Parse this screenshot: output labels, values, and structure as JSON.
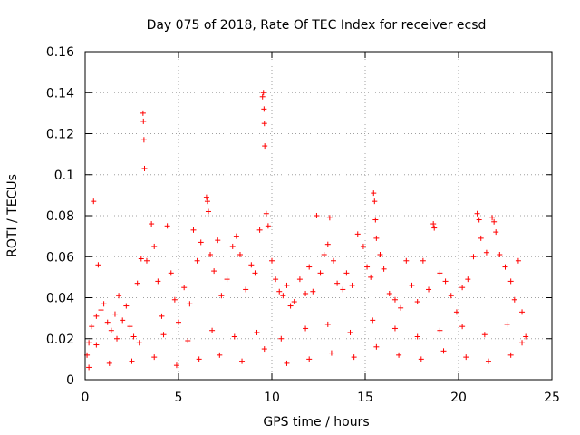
{
  "chart_data": {
    "type": "scatter",
    "title": "Day 075 of 2018, Rate Of TEC Index for receiver ecsd",
    "xlabel": "GPS time / hours",
    "ylabel": "ROTI / TECUs",
    "xlim": [
      0,
      25
    ],
    "ylim": [
      0,
      0.16
    ],
    "x_ticks": [
      0,
      5,
      10,
      15,
      20,
      25
    ],
    "y_ticks": [
      0,
      0.02,
      0.04,
      0.06,
      0.08,
      0.1,
      0.12,
      0.14,
      0.16
    ],
    "x_tick_labels": [
      "0",
      "5",
      "10",
      "15",
      "20",
      "25"
    ],
    "y_tick_labels": [
      "0",
      "0.02",
      "0.04",
      "0.06",
      "0.08",
      "0.1",
      "0.12",
      "0.14",
      "0.16"
    ],
    "grid": true,
    "marker": "+",
    "color": "#ff0000",
    "series": [
      {
        "name": "ROTI",
        "points": [
          [
            0.1,
            0.012
          ],
          [
            0.2,
            0.018
          ],
          [
            0.35,
            0.026
          ],
          [
            0.45,
            0.087
          ],
          [
            0.6,
            0.031
          ],
          [
            0.7,
            0.056
          ],
          [
            0.85,
            0.034
          ],
          [
            1.0,
            0.037
          ],
          [
            1.2,
            0.028
          ],
          [
            1.4,
            0.024
          ],
          [
            1.6,
            0.032
          ],
          [
            1.8,
            0.041
          ],
          [
            2.0,
            0.029
          ],
          [
            2.2,
            0.036
          ],
          [
            2.4,
            0.026
          ],
          [
            2.6,
            0.021
          ],
          [
            2.8,
            0.047
          ],
          [
            3.0,
            0.059
          ],
          [
            3.1,
            0.13
          ],
          [
            3.12,
            0.126
          ],
          [
            3.15,
            0.117
          ],
          [
            3.18,
            0.103
          ],
          [
            3.3,
            0.058
          ],
          [
            3.55,
            0.076
          ],
          [
            3.7,
            0.065
          ],
          [
            3.9,
            0.048
          ],
          [
            4.1,
            0.031
          ],
          [
            4.4,
            0.075
          ],
          [
            4.6,
            0.052
          ],
          [
            4.8,
            0.039
          ],
          [
            5.0,
            0.028
          ],
          [
            5.3,
            0.045
          ],
          [
            5.6,
            0.037
          ],
          [
            5.8,
            0.073
          ],
          [
            6.0,
            0.058
          ],
          [
            6.2,
            0.067
          ],
          [
            6.5,
            0.089
          ],
          [
            6.55,
            0.087
          ],
          [
            6.6,
            0.082
          ],
          [
            6.7,
            0.061
          ],
          [
            6.9,
            0.053
          ],
          [
            7.1,
            0.068
          ],
          [
            7.3,
            0.041
          ],
          [
            7.6,
            0.049
          ],
          [
            7.9,
            0.065
          ],
          [
            8.1,
            0.07
          ],
          [
            8.3,
            0.061
          ],
          [
            8.6,
            0.044
          ],
          [
            8.9,
            0.056
          ],
          [
            9.1,
            0.052
          ],
          [
            9.35,
            0.073
          ],
          [
            9.5,
            0.138
          ],
          [
            9.55,
            0.14
          ],
          [
            9.58,
            0.132
          ],
          [
            9.6,
            0.125
          ],
          [
            9.62,
            0.114
          ],
          [
            9.7,
            0.081
          ],
          [
            9.8,
            0.075
          ],
          [
            10.0,
            0.058
          ],
          [
            10.2,
            0.049
          ],
          [
            10.4,
            0.043
          ],
          [
            10.6,
            0.041
          ],
          [
            10.8,
            0.046
          ],
          [
            11.0,
            0.036
          ],
          [
            11.2,
            0.038
          ],
          [
            11.5,
            0.049
          ],
          [
            11.8,
            0.042
          ],
          [
            12.0,
            0.055
          ],
          [
            12.2,
            0.043
          ],
          [
            12.4,
            0.08
          ],
          [
            12.6,
            0.052
          ],
          [
            12.8,
            0.061
          ],
          [
            13.0,
            0.066
          ],
          [
            13.1,
            0.079
          ],
          [
            13.3,
            0.058
          ],
          [
            13.5,
            0.047
          ],
          [
            13.8,
            0.044
          ],
          [
            14.0,
            0.052
          ],
          [
            14.3,
            0.046
          ],
          [
            14.6,
            0.071
          ],
          [
            14.9,
            0.065
          ],
          [
            15.1,
            0.055
          ],
          [
            15.3,
            0.05
          ],
          [
            15.45,
            0.091
          ],
          [
            15.5,
            0.087
          ],
          [
            15.55,
            0.078
          ],
          [
            15.6,
            0.069
          ],
          [
            15.8,
            0.061
          ],
          [
            16.0,
            0.054
          ],
          [
            16.3,
            0.042
          ],
          [
            16.6,
            0.039
          ],
          [
            16.9,
            0.035
          ],
          [
            17.2,
            0.058
          ],
          [
            17.5,
            0.046
          ],
          [
            17.8,
            0.038
          ],
          [
            18.1,
            0.058
          ],
          [
            18.4,
            0.044
          ],
          [
            18.65,
            0.076
          ],
          [
            18.7,
            0.074
          ],
          [
            19.0,
            0.052
          ],
          [
            19.3,
            0.048
          ],
          [
            19.6,
            0.041
          ],
          [
            19.9,
            0.033
          ],
          [
            20.2,
            0.045
          ],
          [
            20.5,
            0.049
          ],
          [
            20.8,
            0.06
          ],
          [
            21.0,
            0.081
          ],
          [
            21.1,
            0.078
          ],
          [
            21.2,
            0.069
          ],
          [
            21.5,
            0.062
          ],
          [
            21.8,
            0.079
          ],
          [
            21.9,
            0.077
          ],
          [
            22.0,
            0.072
          ],
          [
            22.2,
            0.061
          ],
          [
            22.5,
            0.055
          ],
          [
            22.8,
            0.048
          ],
          [
            23.0,
            0.039
          ],
          [
            23.2,
            0.058
          ],
          [
            23.4,
            0.033
          ],
          [
            23.6,
            0.021
          ],
          [
            0.2,
            0.006
          ],
          [
            1.3,
            0.008
          ],
          [
            2.5,
            0.009
          ],
          [
            3.7,
            0.011
          ],
          [
            4.9,
            0.007
          ],
          [
            6.1,
            0.01
          ],
          [
            7.2,
            0.012
          ],
          [
            8.4,
            0.009
          ],
          [
            9.6,
            0.015
          ],
          [
            10.8,
            0.008
          ],
          [
            12.0,
            0.01
          ],
          [
            13.2,
            0.013
          ],
          [
            14.4,
            0.011
          ],
          [
            15.6,
            0.016
          ],
          [
            16.8,
            0.012
          ],
          [
            18.0,
            0.01
          ],
          [
            19.2,
            0.014
          ],
          [
            20.4,
            0.011
          ],
          [
            21.6,
            0.009
          ],
          [
            22.8,
            0.012
          ],
          [
            0.6,
            0.017
          ],
          [
            1.7,
            0.02
          ],
          [
            2.9,
            0.018
          ],
          [
            4.2,
            0.022
          ],
          [
            5.5,
            0.019
          ],
          [
            6.8,
            0.024
          ],
          [
            8.0,
            0.021
          ],
          [
            9.2,
            0.023
          ],
          [
            10.5,
            0.02
          ],
          [
            11.8,
            0.025
          ],
          [
            13.0,
            0.027
          ],
          [
            14.2,
            0.023
          ],
          [
            15.4,
            0.029
          ],
          [
            16.6,
            0.025
          ],
          [
            17.8,
            0.021
          ],
          [
            19.0,
            0.024
          ],
          [
            20.2,
            0.026
          ],
          [
            21.4,
            0.022
          ],
          [
            22.6,
            0.027
          ],
          [
            23.4,
            0.018
          ]
        ]
      }
    ]
  }
}
